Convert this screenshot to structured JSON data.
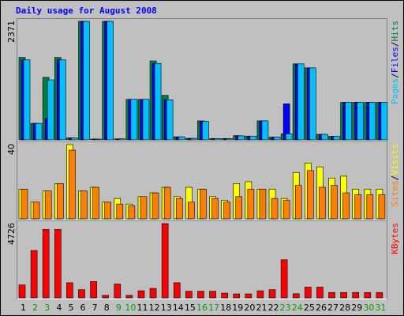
{
  "chart_data": {
    "type": "bar",
    "title": "Daily usage for August 2008",
    "categories": [
      "1",
      "2",
      "3",
      "4",
      "5",
      "6",
      "7",
      "8",
      "9",
      "10",
      "11",
      "12",
      "13",
      "14",
      "15",
      "16",
      "17",
      "18",
      "19",
      "20",
      "21",
      "22",
      "23",
      "24",
      "25",
      "26",
      "27",
      "28",
      "29",
      "30",
      "31"
    ],
    "weekend_days": [
      "2",
      "3",
      "9",
      "10",
      "16",
      "17",
      "23",
      "24",
      "30",
      "31"
    ],
    "panels": [
      {
        "id": "pages-files-hits",
        "max_label": "2371",
        "ylim": [
          0,
          2371
        ],
        "legend": [
          {
            "text": "Pages",
            "color": "#00c0ff"
          },
          {
            "text": "/",
            "color": "#000000"
          },
          {
            "text": "Files",
            "color": "#0000ff"
          },
          {
            "text": "/",
            "color": "#000000"
          },
          {
            "text": "Hits",
            "color": "#008040"
          }
        ],
        "series": [
          {
            "name": "Hits",
            "color": "#008040",
            "values": [
              1650,
              330,
              1250,
              1650,
              40,
              2371,
              10,
              2371,
              20,
              810,
              810,
              1580,
              890,
              60,
              30,
              380,
              25,
              25,
              85,
              75,
              380,
              55,
              120,
              1520,
              1440,
              110,
              70,
              750,
              750,
              750,
              750
            ]
          },
          {
            "name": "Files",
            "color": "#0000ff",
            "values": [
              1600,
              330,
              430,
              1600,
              40,
              2371,
              10,
              2371,
              20,
              810,
              810,
              1530,
              800,
              60,
              30,
              370,
              25,
              25,
              80,
              75,
              380,
              55,
              720,
              1520,
              1440,
              110,
              70,
              750,
              750,
              750,
              750
            ]
          },
          {
            "name": "Pages",
            "color": "#00c0ff",
            "values": [
              1600,
              330,
              1200,
              1600,
              40,
              2371,
              10,
              2371,
              20,
              810,
              810,
              1530,
              800,
              60,
              30,
              370,
              25,
              25,
              80,
              75,
              380,
              55,
              120,
              1520,
              1440,
              110,
              70,
              750,
              750,
              750,
              750
            ]
          }
        ]
      },
      {
        "id": "sites-visits",
        "max_label": "40",
        "ylim": [
          0,
          40
        ],
        "legend": [
          {
            "text": "Sites",
            "color": "#ff8000"
          },
          {
            "text": "/",
            "color": "#000000"
          },
          {
            "text": "Visits",
            "color": "#ffff00"
          }
        ],
        "series": [
          {
            "name": "Visits",
            "color": "#ffff00",
            "values": [
              16,
              9,
              15,
              19,
              40,
              15,
              17,
              9,
              11,
              8,
              12,
              14,
              17,
              12,
              17,
              16,
              12,
              10,
              19,
              20,
              16,
              16,
              11,
              25,
              30,
              28,
              22,
              23,
              16,
              16,
              16
            ]
          },
          {
            "name": "Sites",
            "color": "#ff8000",
            "values": [
              16,
              9,
              15,
              19,
              37,
              15,
              17,
              9,
              8,
              7,
              12,
              14,
              17,
              11,
              9,
              16,
              11,
              9,
              12,
              16,
              16,
              11,
              10,
              18,
              26,
              17,
              18,
              14,
              13,
              13,
              13
            ]
          }
        ]
      },
      {
        "id": "kbytes",
        "max_label": "4726",
        "ylim": [
          0,
          4726
        ],
        "legend": [
          {
            "text": "KBytes",
            "color": "#ff0000"
          }
        ],
        "series": [
          {
            "name": "KBytes",
            "color": "#ff0000",
            "values": [
              820,
              3010,
              4350,
              4350,
              960,
              520,
              1040,
              160,
              880,
              160,
              450,
              600,
              4726,
              960,
              420,
              420,
              420,
              300,
              250,
              250,
              450,
              520,
              2420,
              260,
              680,
              680,
              340,
              340,
              340,
              340,
              340
            ]
          }
        ]
      }
    ],
    "colors": {
      "background": "#c0c0c0",
      "border": "#000000",
      "title": "#0000ff",
      "day_label_weekday": "#000000",
      "day_label_weekend": "#00a000"
    }
  }
}
